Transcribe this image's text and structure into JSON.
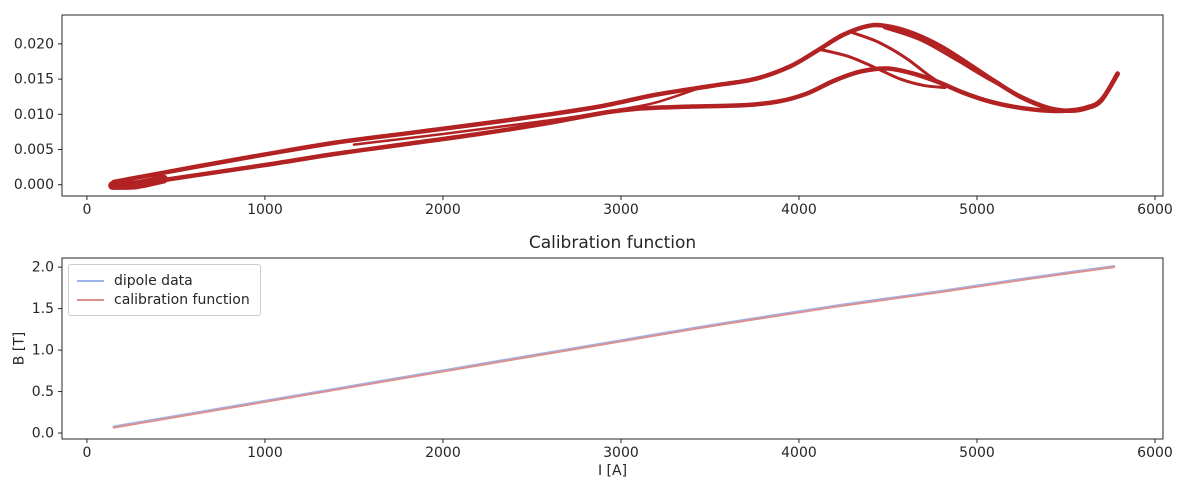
{
  "figure": {
    "background": "#ffffff",
    "spine_color": "#262626",
    "tick_label_color": "#262626"
  },
  "chart_data": [
    {
      "id": "field-residual-plot",
      "type": "line",
      "title": "",
      "xlabel": "",
      "ylabel": "",
      "grid": false,
      "legend_position": "none",
      "xlim": [
        -140,
        6045
      ],
      "ylim": [
        -0.0016,
        0.0241
      ],
      "xticks": [
        {
          "value": 0,
          "label": "0"
        },
        {
          "value": 1000,
          "label": "1000"
        },
        {
          "value": 2000,
          "label": "2000"
        },
        {
          "value": 3000,
          "label": "3000"
        },
        {
          "value": 4000,
          "label": "4000"
        },
        {
          "value": 5000,
          "label": "5000"
        },
        {
          "value": 6000,
          "label": "6000"
        }
      ],
      "yticks": [
        {
          "value": 0.0,
          "label": "0.000"
        },
        {
          "value": 0.005,
          "label": "0.005"
        },
        {
          "value": 0.01,
          "label": "0.010"
        },
        {
          "value": 0.015,
          "label": "0.015"
        },
        {
          "value": 0.02,
          "label": "0.020"
        }
      ],
      "series": [
        {
          "name": "hysteresis-start-cluster",
          "color": "#b22222",
          "width": 9,
          "points": [
            [
              145,
              -0.0001
            ],
            [
              280,
              0.0
            ],
            [
              430,
              0.0008
            ]
          ]
        },
        {
          "name": "hysteresis-upper-envelope",
          "color": "#b22222",
          "width": 4.5,
          "points": [
            [
              150,
              0.0004
            ],
            [
              600,
              0.0025
            ],
            [
              1000,
              0.0043
            ],
            [
              1400,
              0.006
            ],
            [
              1800,
              0.0073
            ],
            [
              2200,
              0.0086
            ],
            [
              2600,
              0.01
            ],
            [
              2900,
              0.0112
            ],
            [
              3200,
              0.0128
            ],
            [
              3500,
              0.014
            ],
            [
              3750,
              0.015
            ],
            [
              3950,
              0.0168
            ],
            [
              4100,
              0.019
            ],
            [
              4250,
              0.0213
            ],
            [
              4400,
              0.0226
            ],
            [
              4520,
              0.0224
            ],
            [
              4650,
              0.0214
            ],
            [
              4800,
              0.0196
            ],
            [
              4950,
              0.0172
            ],
            [
              5100,
              0.0147
            ],
            [
              5250,
              0.0124
            ],
            [
              5400,
              0.0109
            ],
            [
              5520,
              0.0105
            ],
            [
              5620,
              0.0109
            ],
            [
              5700,
              0.012
            ],
            [
              5790,
              0.0158
            ]
          ]
        },
        {
          "name": "hysteresis-lower-envelope",
          "color": "#b22222",
          "width": 4.5,
          "points": [
            [
              150,
              -0.0004
            ],
            [
              600,
              0.0013
            ],
            [
              1000,
              0.0028
            ],
            [
              1400,
              0.0044
            ],
            [
              1800,
              0.0058
            ],
            [
              2200,
              0.0072
            ],
            [
              2600,
              0.0088
            ],
            [
              2900,
              0.0102
            ],
            [
              3100,
              0.0108
            ],
            [
              3400,
              0.0111
            ],
            [
              3700,
              0.0113
            ],
            [
              3900,
              0.0119
            ],
            [
              4050,
              0.013
            ],
            [
              4200,
              0.0148
            ],
            [
              4350,
              0.0161
            ],
            [
              4500,
              0.0165
            ],
            [
              4640,
              0.0158
            ],
            [
              4780,
              0.0146
            ],
            [
              4920,
              0.0131
            ],
            [
              5060,
              0.0119
            ],
            [
              5200,
              0.0111
            ],
            [
              5350,
              0.0106
            ],
            [
              5500,
              0.0105
            ],
            [
              5620,
              0.011
            ],
            [
              5700,
              0.0121
            ],
            [
              5790,
              0.0157
            ]
          ]
        },
        {
          "name": "hysteresis-inner-line",
          "color": "#b22222",
          "width": 2.5,
          "points": [
            [
              1500,
              0.0057
            ],
            [
              2000,
              0.0072
            ],
            [
              2400,
              0.0085
            ],
            [
              2700,
              0.0095
            ],
            [
              3000,
              0.0107
            ],
            [
              3200,
              0.0117
            ],
            [
              3450,
              0.0138
            ]
          ]
        },
        {
          "name": "hysteresis-minor-branch-1",
          "color": "#b22222",
          "width": 3,
          "points": [
            [
              4120,
              0.0192
            ],
            [
              4280,
              0.0182
            ],
            [
              4430,
              0.0166
            ],
            [
              4570,
              0.015
            ],
            [
              4700,
              0.0141
            ],
            [
              4820,
              0.0138
            ]
          ]
        },
        {
          "name": "hysteresis-minor-branch-2",
          "color": "#b22222",
          "width": 3,
          "points": [
            [
              4300,
              0.0216
            ],
            [
              4450,
              0.0202
            ],
            [
              4600,
              0.018
            ],
            [
              4720,
              0.0157
            ],
            [
              4820,
              0.014
            ]
          ]
        },
        {
          "name": "hysteresis-minor-branch-3",
          "color": "#b22222",
          "width": 3,
          "points": [
            [
              4480,
              0.0223
            ],
            [
              4680,
              0.0206
            ],
            [
              4880,
              0.0178
            ],
            [
              5080,
              0.0148
            ],
            [
              5280,
              0.0122
            ],
            [
              5430,
              0.0108
            ],
            [
              5550,
              0.0105
            ]
          ]
        }
      ]
    },
    {
      "id": "calibration-plot",
      "type": "line",
      "title": "Calibration function",
      "xlabel": "I [A]",
      "ylabel": "B [T]",
      "grid": false,
      "xlim": [
        -140,
        6045
      ],
      "ylim": [
        -0.072,
        2.11
      ],
      "xticks": [
        {
          "value": 0,
          "label": "0"
        },
        {
          "value": 1000,
          "label": "1000"
        },
        {
          "value": 2000,
          "label": "2000"
        },
        {
          "value": 3000,
          "label": "3000"
        },
        {
          "value": 4000,
          "label": "4000"
        },
        {
          "value": 5000,
          "label": "5000"
        },
        {
          "value": 6000,
          "label": "6000"
        }
      ],
      "yticks": [
        {
          "value": 0.0,
          "label": "0.0"
        },
        {
          "value": 0.5,
          "label": "0.5"
        },
        {
          "value": 1.0,
          "label": "1.0"
        },
        {
          "value": 1.5,
          "label": "1.5"
        },
        {
          "value": 2.0,
          "label": "2.0"
        }
      ],
      "legend": {
        "position": "upper left",
        "items": [
          {
            "label": "dipole data",
            "color": "#9db4e8"
          },
          {
            "label": "calibration function",
            "color": "#dc9090"
          }
        ]
      },
      "series": [
        {
          "name": "dipole-data",
          "color": "#9db4e8",
          "width": 2.2,
          "points": [
            [
              150,
              0.078
            ],
            [
              1000,
              0.388
            ],
            [
              2000,
              0.755
            ],
            [
              3000,
              1.118
            ],
            [
              3600,
              1.333
            ],
            [
              4200,
              1.533
            ],
            [
              4800,
              1.713
            ],
            [
              5300,
              1.873
            ],
            [
              5770,
              2.013
            ]
          ]
        },
        {
          "name": "calibration-function",
          "color": "#dc9090",
          "width": 2,
          "points": [
            [
              150,
              0.065
            ],
            [
              1000,
              0.375
            ],
            [
              2000,
              0.742
            ],
            [
              3000,
              1.105
            ],
            [
              3600,
              1.32
            ],
            [
              4200,
              1.52
            ],
            [
              4800,
              1.7
            ],
            [
              5300,
              1.86
            ],
            [
              5770,
              2.0
            ]
          ]
        }
      ]
    }
  ]
}
